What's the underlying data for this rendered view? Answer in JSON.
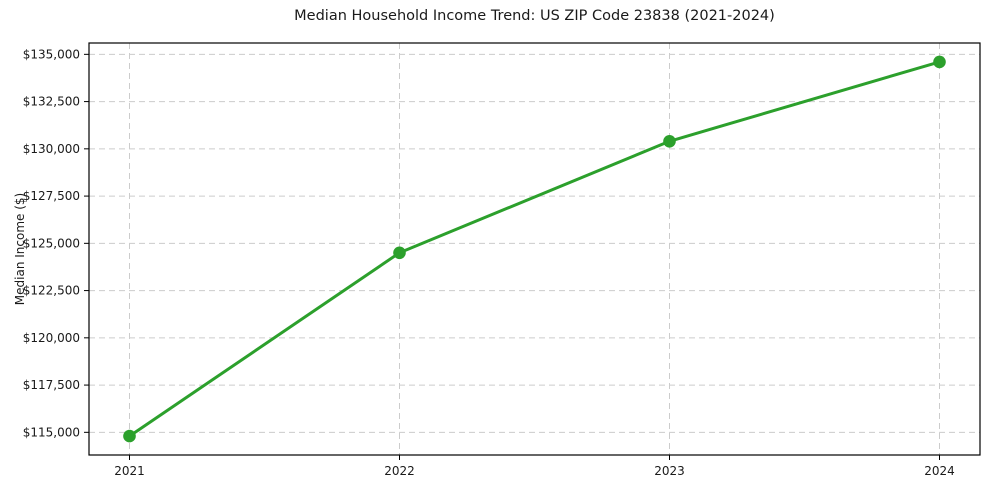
{
  "chart_data": {
    "type": "line",
    "title": "Median Household Income Trend: US ZIP Code 23838 (2021-2024)",
    "xlabel": "",
    "ylabel": "Median Income ($)",
    "x": [
      2021,
      2022,
      2023,
      2024
    ],
    "series": [
      {
        "name": "Median Household Income",
        "values": [
          114800,
          124500,
          130400,
          134600
        ]
      }
    ],
    "x_tick_labels": [
      "2021",
      "2022",
      "2023",
      "2024"
    ],
    "y_ticks": [
      {
        "value": 115000,
        "label": "$115,000"
      },
      {
        "value": 117500,
        "label": "$117,500"
      },
      {
        "value": 120000,
        "label": "$120,000"
      },
      {
        "value": 122500,
        "label": "$122,500"
      },
      {
        "value": 125000,
        "label": "$125,000"
      },
      {
        "value": 127500,
        "label": "$127,500"
      },
      {
        "value": 130000,
        "label": "$130,000"
      },
      {
        "value": 132500,
        "label": "$132,500"
      },
      {
        "value": 135000,
        "label": "$135,000"
      }
    ],
    "xlim": [
      2020.85,
      2024.15
    ],
    "ylim": [
      113800,
      135600
    ],
    "grid": true,
    "legend": "none",
    "colors": {
      "line": "#2ca02c",
      "marker": "#2ca02c",
      "grid": "#cccccc",
      "spine": "#000000",
      "background": "#ffffff"
    }
  }
}
